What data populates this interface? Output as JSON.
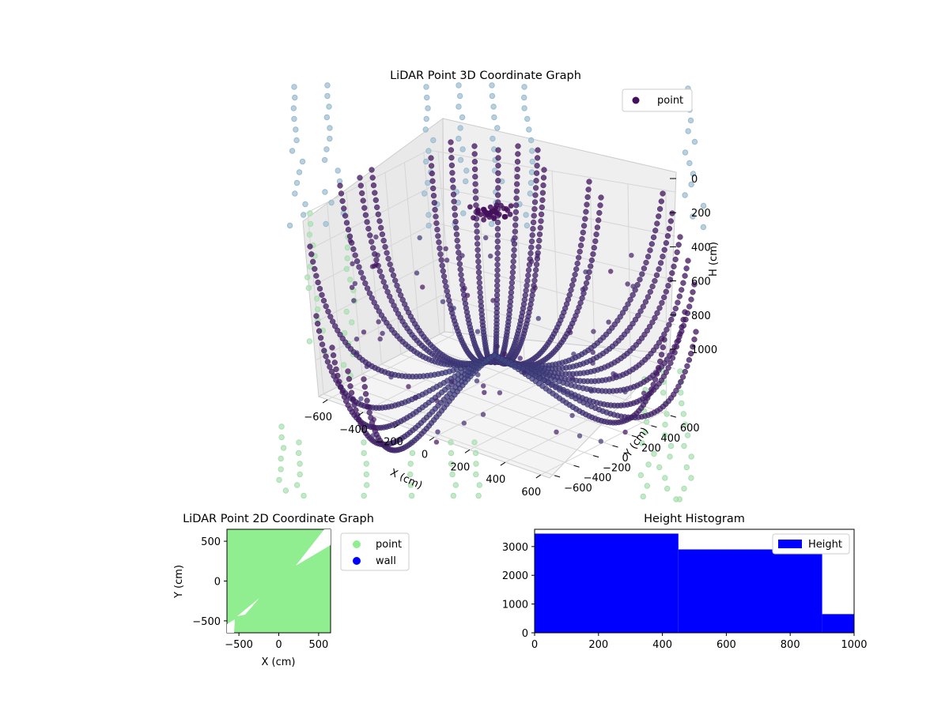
{
  "chart_data": [
    {
      "type": "scatter",
      "projection": "3d",
      "title": "LiDAR Point 3D Coordinate Graph",
      "xlabel": "X (cm)",
      "ylabel": "Y (cm)",
      "zlabel": "H (cm)",
      "xlim": [
        -650,
        650
      ],
      "ylim": [
        -650,
        650
      ],
      "zlim": [
        1000,
        0
      ],
      "xticks": [
        "−600",
        "−400",
        "−200",
        "0",
        "200",
        "400",
        "600"
      ],
      "yticks": [
        "−600",
        "−400",
        "−200",
        "0",
        "200",
        "400",
        "600"
      ],
      "zticks": [
        "0",
        "200",
        "400",
        "600",
        "800",
        "1000"
      ],
      "legend": {
        "position": "top-right",
        "entries": [
          "point"
        ]
      },
      "colormap": "viridis",
      "grid": true,
      "series": [
        {
          "name": "point",
          "description_values": "dense radial arcs of LiDAR points converging toward center near floor"
        }
      ]
    },
    {
      "type": "scatter",
      "title": "LiDAR Point 2D Coordinate Graph",
      "xlabel": "X (cm)",
      "ylabel": "Y (cm)",
      "xlim": [
        -650,
        650
      ],
      "ylim": [
        -650,
        650
      ],
      "xticks": [
        "−500",
        "0",
        "500"
      ],
      "yticks": [
        "500",
        "0",
        "−500"
      ],
      "legend": {
        "position": "outside-right",
        "entries": [
          "point",
          "wall"
        ]
      },
      "series": [
        {
          "name": "point",
          "color": "#90ee90"
        },
        {
          "name": "wall",
          "color": "#0000ff"
        }
      ]
    },
    {
      "type": "bar",
      "title": "Height Histogram",
      "xlim": [
        0,
        1000
      ],
      "ylim": [
        0,
        3600
      ],
      "xticks": [
        "0",
        "200",
        "400",
        "600",
        "800",
        "1000"
      ],
      "yticks": [
        "0",
        "1000",
        "2000",
        "3000"
      ],
      "legend": {
        "position": "top-right",
        "entries": [
          "Height"
        ]
      },
      "bins": [
        {
          "x0": 0,
          "x1": 450,
          "count": 3450
        },
        {
          "x0": 450,
          "x1": 900,
          "count": 2900
        },
        {
          "x0": 900,
          "x1": 1000,
          "count": 650
        }
      ],
      "series": [
        {
          "name": "Height",
          "color": "#0000ff"
        }
      ]
    }
  ]
}
